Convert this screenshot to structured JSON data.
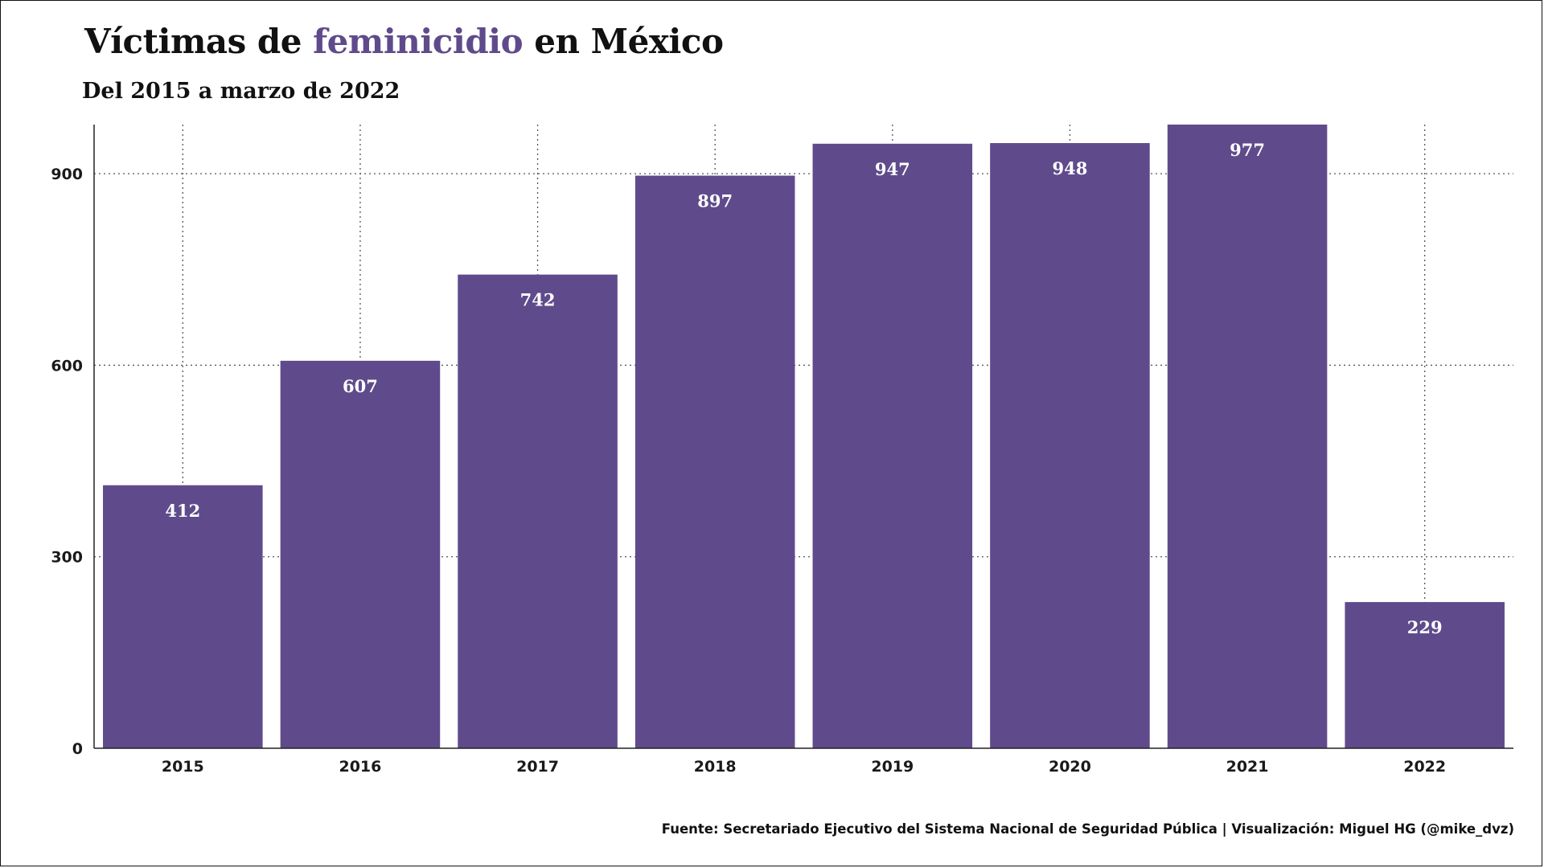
{
  "title": {
    "prefix": "Víctimas de ",
    "highlight": "feminicidio",
    "suffix": " en México"
  },
  "subtitle": "Del 2015 a marzo de 2022",
  "footer": "Fuente: Secretariado Ejecutivo del Sistema Nacional de Seguridad Pública | Visualización: Miguel HG (@mike_dvz)",
  "colors": {
    "bar": "#5f4b8b",
    "accent": "#5f4b8b",
    "bar_label": "#ffffff"
  },
  "chart_data": {
    "type": "bar",
    "categories": [
      "2015",
      "2016",
      "2017",
      "2018",
      "2019",
      "2020",
      "2021",
      "2022"
    ],
    "values": [
      412,
      607,
      742,
      897,
      947,
      948,
      977,
      229
    ],
    "title": "Víctimas de feminicidio en México",
    "subtitle": "Del 2015 a marzo de 2022",
    "xlabel": "",
    "ylabel": "",
    "ylim": [
      0,
      977
    ],
    "yticks": [
      0,
      300,
      600,
      900
    ],
    "grid": true,
    "data_labels": true
  }
}
